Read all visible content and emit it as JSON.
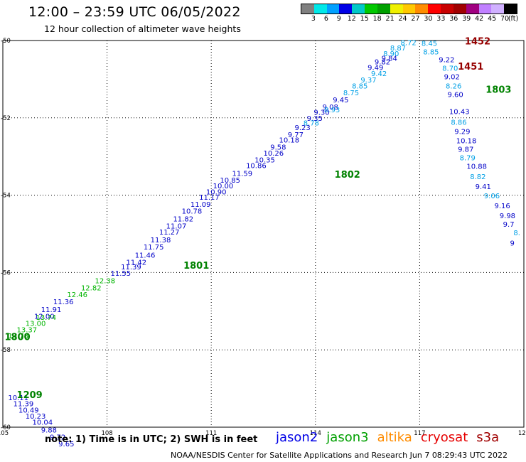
{
  "header": {
    "title": "12:00 – 23:59 UTC 06/05/2022",
    "subtitle": "12 hour collection of altimeter wave heights"
  },
  "color_scale": {
    "unit": "(ft)",
    "colors": [
      "#808080",
      "#00e8e8",
      "#00a0ff",
      "#0000e6",
      "#00c8c8",
      "#00c800",
      "#00a000",
      "#f0f000",
      "#ffc800",
      "#ff8c00",
      "#ff0000",
      "#c80000",
      "#a00000",
      "#a00080",
      "#c080ff",
      "#d0b0ff",
      "#000000"
    ],
    "labels": [
      "3",
      "6",
      "9",
      "12",
      "15",
      "18",
      "21",
      "24",
      "27",
      "30",
      "33",
      "36",
      "39",
      "42",
      "45",
      "70"
    ]
  },
  "chart_data": {
    "type": "scatter",
    "xlim": [
      105,
      120
    ],
    "ylim": [
      -60,
      -50
    ],
    "x_ticks": [
      105,
      108,
      111,
      114,
      117,
      120
    ],
    "y_ticks": [
      -50,
      -52,
      -54,
      -56,
      -58,
      -60
    ],
    "grid": true,
    "series": [
      {
        "name": "jason2",
        "color": "#0000c8",
        "points": [
          {
            "x": 105.15,
            "y": -59.3,
            "v": "10.11"
          },
          {
            "x": 105.3,
            "y": -59.46,
            "v": "11.39"
          },
          {
            "x": 105.45,
            "y": -59.62,
            "v": "10.49"
          },
          {
            "x": 105.65,
            "y": -59.78,
            "v": "10.23"
          },
          {
            "x": 105.85,
            "y": -59.94,
            "v": "10.04"
          },
          {
            "x": 106.1,
            "y": -60.14,
            "v": "9.88"
          },
          {
            "x": 106.35,
            "y": -60.32,
            "v": "9.72"
          },
          {
            "x": 106.6,
            "y": -60.5,
            "v": "9.65"
          },
          {
            "x": 105.9,
            "y": -57.2,
            "v": "12.00"
          },
          {
            "x": 106.1,
            "y": -57.02,
            "v": "11.91"
          },
          {
            "x": 106.45,
            "y": -56.82,
            "v": "11.36"
          },
          {
            "x": 108.1,
            "y": -56.08,
            "v": "11.55"
          },
          {
            "x": 108.4,
            "y": -55.92,
            "v": "11.39"
          },
          {
            "x": 108.55,
            "y": -55.8,
            "v": "11.42"
          },
          {
            "x": 108.8,
            "y": -55.62,
            "v": "11.46"
          },
          {
            "x": 109.05,
            "y": -55.4,
            "v": "11.75"
          },
          {
            "x": 109.25,
            "y": -55.22,
            "v": "11.38"
          },
          {
            "x": 109.5,
            "y": -55.02,
            "v": "11.27"
          },
          {
            "x": 109.7,
            "y": -54.86,
            "v": "11.07"
          },
          {
            "x": 109.9,
            "y": -54.68,
            "v": "11.82"
          },
          {
            "x": 110.15,
            "y": -54.48,
            "v": "10.78"
          },
          {
            "x": 110.4,
            "y": -54.3,
            "v": "11.09"
          },
          {
            "x": 110.65,
            "y": -54.12,
            "v": "11.17"
          },
          {
            "x": 110.85,
            "y": -53.98,
            "v": "10.90"
          },
          {
            "x": 111.05,
            "y": -53.82,
            "v": "10.00"
          },
          {
            "x": 111.25,
            "y": -53.68,
            "v": "10.85"
          },
          {
            "x": 111.6,
            "y": -53.5,
            "v": "11.59"
          },
          {
            "x": 112.0,
            "y": -53.3,
            "v": "10.86"
          },
          {
            "x": 112.25,
            "y": -53.15,
            "v": "10.35"
          },
          {
            "x": 112.5,
            "y": -52.98,
            "v": "10.26"
          },
          {
            "x": 112.7,
            "y": -52.82,
            "v": "9.58"
          },
          {
            "x": 112.95,
            "y": -52.64,
            "v": "10.18"
          },
          {
            "x": 113.2,
            "y": -52.5,
            "v": "9.77"
          },
          {
            "x": 113.4,
            "y": -52.32,
            "v": "9.23"
          },
          {
            "x": 113.75,
            "y": -52.08,
            "v": "9.35"
          },
          {
            "x": 113.95,
            "y": -51.92,
            "v": "9.30"
          },
          {
            "x": 114.2,
            "y": -51.78,
            "v": "9.08"
          },
          {
            "x": 114.5,
            "y": -51.6,
            "v": "9.45"
          },
          {
            "x": 115.9,
            "y": -50.52,
            "v": "9.84"
          },
          {
            "x": 115.7,
            "y": -50.62,
            "v": "9.82"
          },
          {
            "x": 115.5,
            "y": -50.76,
            "v": "9.49"
          },
          {
            "x": 117.55,
            "y": -50.56,
            "v": "9.22"
          },
          {
            "x": 117.7,
            "y": -51.0,
            "v": "9.02"
          },
          {
            "x": 117.8,
            "y": -51.46,
            "v": "9.60"
          },
          {
            "x": 117.85,
            "y": -51.9,
            "v": "10.43"
          },
          {
            "x": 118.0,
            "y": -52.42,
            "v": "9.29"
          },
          {
            "x": 118.05,
            "y": -52.66,
            "v": "10.18"
          },
          {
            "x": 118.1,
            "y": -52.88,
            "v": "9.87"
          },
          {
            "x": 118.35,
            "y": -53.32,
            "v": "10.88"
          },
          {
            "x": 118.6,
            "y": -53.84,
            "v": "9.41"
          },
          {
            "x": 119.15,
            "y": -54.34,
            "v": "9.16"
          },
          {
            "x": 119.3,
            "y": -54.6,
            "v": "9.98"
          },
          {
            "x": 119.4,
            "y": -54.82,
            "v": "9.7"
          },
          {
            "x": 119.6,
            "y": -55.3,
            "v": "9"
          }
        ]
      },
      {
        "name": "jason2-light",
        "color": "#00a0e6",
        "points": [
          {
            "x": 113.65,
            "y": -52.2,
            "v": "8.78"
          },
          {
            "x": 114.25,
            "y": -51.86,
            "v": "8.93"
          },
          {
            "x": 114.8,
            "y": -51.42,
            "v": "8.75"
          },
          {
            "x": 115.05,
            "y": -51.24,
            "v": "8.85"
          },
          {
            "x": 115.3,
            "y": -51.08,
            "v": "9.37"
          },
          {
            "x": 115.6,
            "y": -50.92,
            "v": "9.42"
          },
          {
            "x": 115.95,
            "y": -50.4,
            "v": "8.90"
          },
          {
            "x": 116.15,
            "y": -50.26,
            "v": "8.87"
          },
          {
            "x": 116.45,
            "y": -50.12,
            "v": "8.72"
          },
          {
            "x": 117.05,
            "y": -50.14,
            "v": "8.45"
          },
          {
            "x": 117.1,
            "y": -50.36,
            "v": "8.85"
          },
          {
            "x": 117.65,
            "y": -50.78,
            "v": "8.70"
          },
          {
            "x": 117.75,
            "y": -51.24,
            "v": "8.26"
          },
          {
            "x": 117.9,
            "y": -52.18,
            "v": "8.86"
          },
          {
            "x": 118.15,
            "y": -53.1,
            "v": "8.79"
          },
          {
            "x": 118.45,
            "y": -53.58,
            "v": "8.82"
          },
          {
            "x": 118.85,
            "y": -54.08,
            "v": "9.06"
          },
          {
            "x": 119.7,
            "y": -55.04,
            "v": "8."
          }
        ]
      },
      {
        "name": "jason3",
        "color": "#00b400",
        "points": [
          {
            "x": 105.15,
            "y": -57.7,
            "v": "13.78"
          },
          {
            "x": 105.4,
            "y": -57.55,
            "v": "13.37"
          },
          {
            "x": 105.65,
            "y": -57.38,
            "v": "13.00"
          },
          {
            "x": 105.95,
            "y": -57.22,
            "v": "13.74"
          },
          {
            "x": 106.85,
            "y": -56.64,
            "v": "12.46"
          },
          {
            "x": 107.25,
            "y": -56.46,
            "v": "12.82"
          },
          {
            "x": 107.65,
            "y": -56.28,
            "v": "12.38"
          }
        ]
      }
    ],
    "labels": [
      {
        "x": 110.2,
        "y": -55.9,
        "text": "1801",
        "color": "#008200"
      },
      {
        "x": 105.05,
        "y": -57.75,
        "text": "1800",
        "color": "#008200"
      },
      {
        "x": 105.4,
        "y": -59.25,
        "text": "1209",
        "color": "#008200"
      },
      {
        "x": 114.55,
        "y": -53.55,
        "text": "1802",
        "color": "#008200"
      },
      {
        "x": 118.9,
        "y": -51.35,
        "text": "1803",
        "color": "#008200"
      },
      {
        "x": 118.3,
        "y": -50.1,
        "text": "1452",
        "color": "#960000"
      },
      {
        "x": 118.1,
        "y": -50.75,
        "text": "1451",
        "color": "#960000"
      }
    ]
  },
  "footer": {
    "note": "note:  1) Time is in UTC;  2) SWH is in feet",
    "satellites": [
      {
        "name": "jason2",
        "color": "#0000e6"
      },
      {
        "name": "jason3",
        "color": "#00a000"
      },
      {
        "name": "altika",
        "color": "#ff8c00"
      },
      {
        "name": "cryosat",
        "color": "#e60000"
      },
      {
        "name": "s3a",
        "color": "#a00000"
      }
    ],
    "credit": "NOAA/NESDIS Center for Satellite Applications and Research   Jun  7 08:29:43 UTC 2022"
  }
}
